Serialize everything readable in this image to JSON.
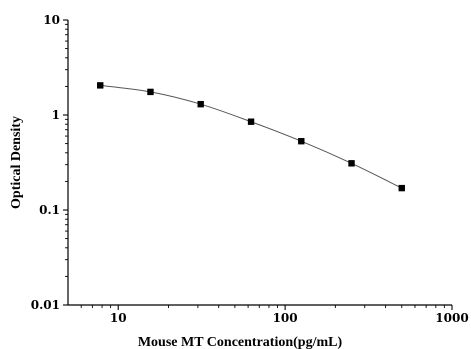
{
  "chart_data": {
    "type": "scatter",
    "title": "",
    "xlabel": "Mouse MT Concentration(pg/mL)",
    "ylabel": "Optical Density",
    "x_scale": "log",
    "y_scale": "log",
    "xlim": [
      5,
      1000
    ],
    "ylim": [
      0.01,
      10
    ],
    "x_ticks": [
      10,
      100,
      1000
    ],
    "x_tick_labels": [
      "10",
      "100",
      "1000"
    ],
    "y_ticks": [
      0.01,
      0.1,
      1,
      10
    ],
    "y_tick_labels": [
      "0.01",
      "0.1",
      "1",
      "10"
    ],
    "grid": false,
    "legend": "none",
    "marker_color": "#000000",
    "line_color": "#555555",
    "series": [
      {
        "x": [
          7.8,
          15.6,
          31.2,
          62.5,
          125,
          250,
          500
        ],
        "y": [
          2.05,
          1.75,
          1.3,
          0.85,
          0.53,
          0.31,
          0.17
        ]
      }
    ]
  }
}
